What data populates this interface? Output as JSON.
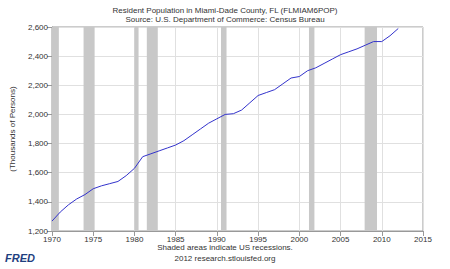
{
  "chart_data": {
    "type": "line",
    "title": "Resident Population in Miami-Dade County, FL (FLMIAM6POP)",
    "subtitle": "Source: U.S. Department of Commerce: Census Bureau",
    "y_label": "(Thousands of Persons)",
    "annotations": [
      "Shaded areas indicate US recessions.",
      "2012 research.stlouisfed.org",
      "FRED"
    ],
    "x": [
      1970,
      1971,
      1972,
      1973,
      1974,
      1975,
      1976,
      1977,
      1978,
      1979,
      1980,
      1981,
      1982,
      1983,
      1984,
      1985,
      1986,
      1987,
      1988,
      1989,
      1990,
      1991,
      1992,
      1993,
      1994,
      1995,
      1996,
      1997,
      1998,
      1999,
      2000,
      2001,
      2002,
      2003,
      2004,
      2005,
      2006,
      2007,
      2008,
      2009,
      2010,
      2011,
      2012
    ],
    "values": [
      1268,
      1330,
      1380,
      1420,
      1450,
      1490,
      1510,
      1525,
      1540,
      1580,
      1630,
      1710,
      1730,
      1750,
      1770,
      1790,
      1820,
      1860,
      1900,
      1940,
      1970,
      2000,
      2005,
      2030,
      2080,
      2130,
      2150,
      2170,
      2210,
      2250,
      2260,
      2300,
      2320,
      2350,
      2380,
      2410,
      2430,
      2450,
      2475,
      2500,
      2500,
      2540,
      2590
    ],
    "color": "#3333cc",
    "recessions": [
      [
        1970,
        1970.83
      ],
      [
        1973.83,
        1975.17
      ],
      [
        1980.0,
        1980.5
      ],
      [
        1981.5,
        1982.83
      ],
      [
        1990.5,
        1991.17
      ],
      [
        2001.17,
        2001.83
      ],
      [
        2007.92,
        2009.42
      ]
    ],
    "xlim": [
      1970,
      2015
    ],
    "xticks": [
      1970,
      1975,
      1980,
      1985,
      1990,
      1995,
      2000,
      2005,
      2010,
      2015
    ],
    "ylim": [
      1200,
      2600
    ],
    "yticks": [
      {
        "value": 1200,
        "label": "1,200"
      },
      {
        "value": 1400,
        "label": "1,400"
      },
      {
        "value": 1600,
        "label": "1,600"
      },
      {
        "value": 1800,
        "label": "1,800"
      },
      {
        "value": 2000,
        "label": "2,000"
      },
      {
        "value": 2200,
        "label": "2,200"
      },
      {
        "value": 2400,
        "label": "2,400"
      },
      {
        "value": 2600,
        "label": "2,600"
      }
    ],
    "grid": true
  }
}
